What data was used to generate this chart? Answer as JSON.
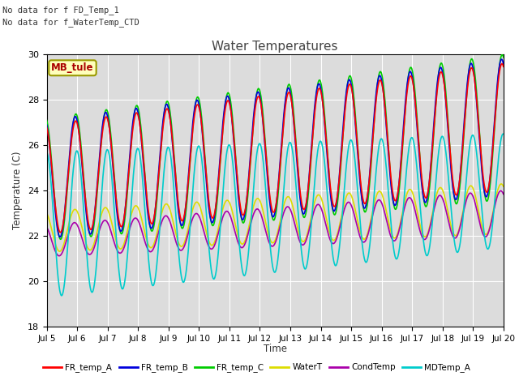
{
  "title": "Water Temperatures",
  "ylabel": "Temperature (C)",
  "xlabel": "Time",
  "ylim": [
    18,
    30
  ],
  "xlim": [
    0,
    15
  ],
  "xtick_labels": [
    "Jul 5",
    "Jul 6",
    "Jul 7",
    "Jul 8",
    "Jul 9",
    "Jul 10",
    "Jul 11",
    "Jul 12",
    "Jul 13",
    "Jul 14",
    "Jul 15",
    "Jul 16",
    "Jul 17",
    "Jul 18",
    "Jul 19",
    "Jul 20"
  ],
  "annotation1": "No data for f FD_Temp_1",
  "annotation2": "No data for f_WaterTemp_CTD",
  "annotation3": "MB_tule",
  "legend_labels": [
    "FR_temp_A",
    "FR_temp_B",
    "FR_temp_C",
    "WaterT",
    "CondTemp",
    "MDTemp_A"
  ],
  "line_colors": [
    "#ff0000",
    "#0000dd",
    "#00cc00",
    "#dddd00",
    "#aa00aa",
    "#00cccc"
  ],
  "bg_color": "#dcdcdc",
  "fig_bg": "#ffffff",
  "n_days": 15,
  "samples_per_day": 96
}
